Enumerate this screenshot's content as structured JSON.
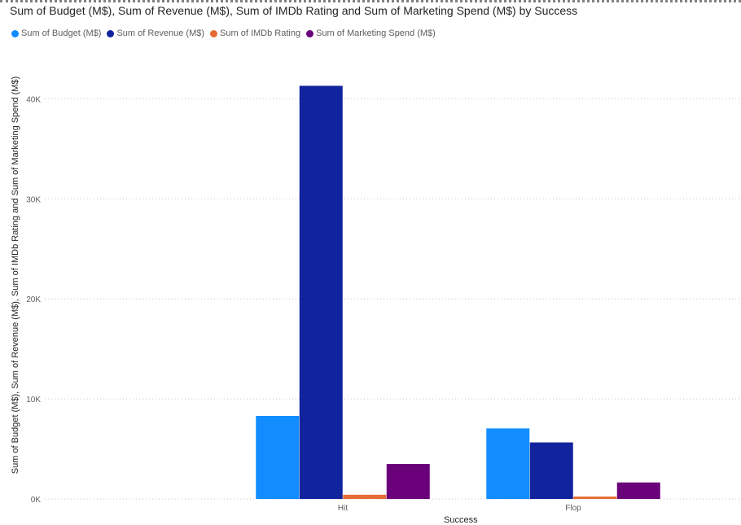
{
  "chart_data": {
    "type": "bar",
    "title": "Sum of Budget (M$), Sum of Revenue (M$), Sum of IMDb Rating and Sum of Marketing Spend (M$) by Success",
    "xlabel": "Success",
    "ylabel": "Sum of Budget (M$), Sum of Revenue (M$), Sum of IMDb Rating and Sum of Marketing Spend (M$)",
    "categories": [
      "Hit",
      "Flop"
    ],
    "series": [
      {
        "name": "Sum of Budget (M$)",
        "color": "#118DFF",
        "values": [
          8300,
          7050
        ]
      },
      {
        "name": "Sum of Revenue (M$)",
        "color": "#12239E",
        "values": [
          41300,
          5650
        ]
      },
      {
        "name": "Sum of IMDb Rating",
        "color": "#E66C37",
        "values": [
          420,
          240
        ]
      },
      {
        "name": "Sum of Marketing Spend (M$)",
        "color": "#6B007B",
        "values": [
          3500,
          1650
        ]
      }
    ],
    "yticks": [
      0,
      10000,
      20000,
      30000,
      40000
    ],
    "ytick_labels": [
      "0K",
      "10K",
      "20K",
      "30K",
      "40K"
    ],
    "ylim": [
      0,
      40000
    ],
    "grid": true,
    "legend_position": "top-left"
  }
}
